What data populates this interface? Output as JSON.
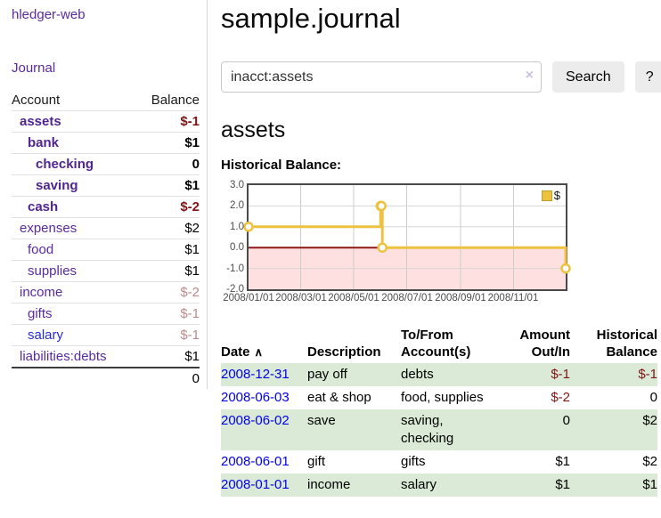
{
  "app": {
    "title": "hledger-web"
  },
  "sidebar": {
    "journal_link": "Journal",
    "accounts": {
      "headers": [
        "Account",
        "Balance"
      ],
      "rows": [
        {
          "name": "assets",
          "depth": 1,
          "strong": true,
          "blue": false,
          "balance": "$-1",
          "balance_style": "bal-neg-strong"
        },
        {
          "name": "bank",
          "depth": 2,
          "strong": true,
          "blue": false,
          "balance": "$1",
          "balance_style": "bal-pos-strong"
        },
        {
          "name": "checking",
          "depth": 3,
          "strong": true,
          "blue": false,
          "balance": "0",
          "balance_style": "bal-pos-strong"
        },
        {
          "name": "saving",
          "depth": 3,
          "strong": true,
          "blue": false,
          "balance": "$1",
          "balance_style": "bal-pos-strong"
        },
        {
          "name": "cash",
          "depth": 2,
          "strong": true,
          "blue": false,
          "balance": "$-2",
          "balance_style": "bal-neg-strong"
        },
        {
          "name": "expenses",
          "depth": 1,
          "strong": false,
          "blue": false,
          "balance": "$2",
          "balance_style": "bal-pos"
        },
        {
          "name": "food",
          "depth": 2,
          "strong": false,
          "blue": false,
          "balance": "$1",
          "balance_style": "bal-pos"
        },
        {
          "name": "supplies",
          "depth": 2,
          "strong": false,
          "blue": false,
          "balance": "$1",
          "balance_style": "bal-pos"
        },
        {
          "name": "income",
          "depth": 1,
          "strong": false,
          "blue": false,
          "balance": "$-2",
          "balance_style": "bal-neg-dim"
        },
        {
          "name": "gifts",
          "depth": 2,
          "strong": false,
          "blue": false,
          "balance": "$-1",
          "balance_style": "bal-neg-dim"
        },
        {
          "name": "salary",
          "depth": 2,
          "strong": false,
          "blue": true,
          "balance": "$-1",
          "balance_style": "bal-neg-dim"
        },
        {
          "name": "liabilities:debts",
          "depth": 1,
          "strong": false,
          "blue": false,
          "balance": "$1",
          "balance_style": "bal-pos"
        }
      ],
      "total": "0"
    }
  },
  "main": {
    "title": "sample.journal",
    "search": {
      "value": "inacct:assets",
      "clear_icon": "×",
      "button_label": "Search",
      "help_label": "?"
    },
    "account_heading": "assets",
    "chart_label": "Historical Balance:",
    "register": {
      "headers": [
        "Date",
        "Description",
        "To/From Account(s)",
        "Amount Out/In",
        "Historical Balance"
      ],
      "sort_icon": "∧",
      "rows": [
        {
          "date": "2008-12-31",
          "description": "pay off",
          "accounts": "debts",
          "amount": "$-1",
          "amount_neg": true,
          "balance": "$-1",
          "balance_neg": true
        },
        {
          "date": "2008-06-03",
          "description": "eat & shop",
          "accounts": "food, supplies",
          "amount": "$-2",
          "amount_neg": true,
          "balance": "0",
          "balance_neg": false
        },
        {
          "date": "2008-06-02",
          "description": "save",
          "accounts": "saving, checking",
          "amount": "0",
          "amount_neg": false,
          "balance": "$2",
          "balance_neg": false
        },
        {
          "date": "2008-06-01",
          "description": "gift",
          "accounts": "gifts",
          "amount": "$1",
          "amount_neg": false,
          "balance": "$2",
          "balance_neg": false
        },
        {
          "date": "2008-01-01",
          "description": "income",
          "accounts": "salary",
          "amount": "$1",
          "amount_neg": false,
          "balance": "$1",
          "balance_neg": false
        }
      ]
    }
  },
  "chart_data": {
    "type": "line",
    "title": "Historical Balance:",
    "step": true,
    "legend": "$",
    "legend_position": "top-right",
    "series": [
      {
        "name": "$",
        "points": [
          [
            "2008-01-01",
            1
          ],
          [
            "2008-06-01",
            2
          ],
          [
            "2008-06-02",
            2
          ],
          [
            "2008-06-03",
            0
          ],
          [
            "2008-12-31",
            -1
          ]
        ]
      }
    ],
    "x_range": [
      "2008-01-01",
      "2008-12-31"
    ],
    "x_ticks": [
      "2008/01/01",
      "2008/03/01",
      "2008/05/01",
      "2008/07/01",
      "2008/09/01",
      "2008/11/01"
    ],
    "y_ticks": [
      3.0,
      2.0,
      1.0,
      0.0,
      -1.0,
      -2.0
    ],
    "ylim": [
      -2,
      3
    ],
    "grid": true,
    "line_color": "#edc240",
    "marker_fill": "#ffffff",
    "zero_line_color": "#8f1818",
    "negative_region_color": "#ffe0e0"
  }
}
